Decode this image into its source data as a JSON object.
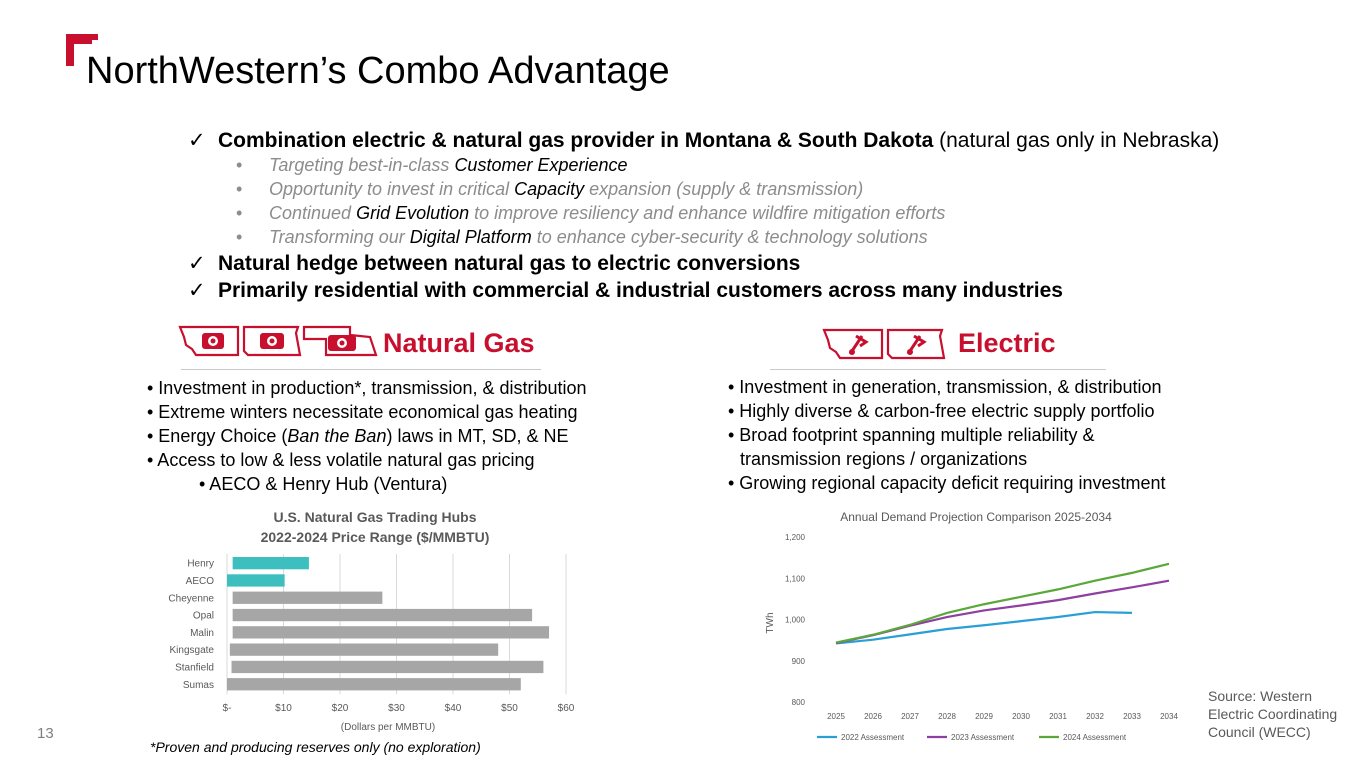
{
  "page": {
    "title": "NorthWestern’s Combo Advantage",
    "page_number": "13",
    "footnote": "*Proven and producing reserves only (no exploration)",
    "source": [
      "Source: Western",
      "Electric Coordinating",
      "Council (WECC)"
    ]
  },
  "colors": {
    "brand_red": "#c8102e",
    "teal": "#3dbfc0",
    "gray_bar": "#a6a6a6",
    "line_blue": "#2a9fd6",
    "line_purple": "#8e3fa0",
    "line_green": "#5aa83a"
  },
  "checklist": [
    {
      "bold": "Combination electric & natural gas provider in Montana & South Dakota",
      "normal": " (natural gas only in Nebraska)"
    },
    {
      "bold": "Natural hedge between natural gas to electric conversions",
      "normal": ""
    },
    {
      "bold": "Primarily residential with commercial & industrial customers across many industries",
      "normal": ""
    }
  ],
  "sub_bullets": [
    {
      "pre": "Targeting best-in-class ",
      "hl": "Customer Experience",
      "post": ""
    },
    {
      "pre": "Opportunity to invest in critical ",
      "hl": "Capacity",
      "post": " expansion (supply & transmission)"
    },
    {
      "pre": "Continued ",
      "hl": "Grid Evolution",
      "post": " to improve resiliency and enhance wildfire mitigation efforts"
    },
    {
      "pre": "Transforming our ",
      "hl": "Digital Platform",
      "post": " to enhance cyber-security & technology solutions"
    }
  ],
  "natural_gas": {
    "heading": "Natural Gas",
    "bullets": [
      "• Investment in production*, transmission, & distribution",
      "• Extreme winters necessitate economical gas heating"
    ],
    "energy_choice": {
      "pre": "• Energy Choice (",
      "italic": "Ban the Ban",
      "post": ") laws in MT, SD, & NE"
    },
    "bullets2": [
      "• Access to low & less volatile natural gas pricing"
    ],
    "sub_bullet": "• AECO & Henry Hub (Ventura)"
  },
  "electric": {
    "heading": "Electric",
    "bullets": [
      "• Investment in generation, transmission, & distribution",
      "• Highly diverse & carbon-free electric supply portfolio",
      "• Broad footprint spanning multiple reliability &",
      "transmission regions / organizations",
      "• Growing regional capacity deficit requiring investment"
    ]
  },
  "chart_data": [
    {
      "type": "bar",
      "orientation": "horizontal",
      "title": "U.S. Natural Gas Trading Hubs",
      "subtitle": "2022-2024 Price Range ($/MMBTU)",
      "xlabel": "(Dollars per MMBTU)",
      "xlim": [
        0,
        60
      ],
      "tick_labels": [
        "$-",
        "$10",
        "$20",
        "$30",
        "$40",
        "$50",
        "$60"
      ],
      "categories": [
        "Henry",
        "AECO",
        "Cheyenne",
        "Opal",
        "Malin",
        "Kingsgate",
        "Stanfield",
        "Sumas"
      ],
      "ranges": [
        [
          1,
          14.5
        ],
        [
          0,
          10.2
        ],
        [
          1,
          27.5
        ],
        [
          1,
          54
        ],
        [
          1,
          57
        ],
        [
          0.5,
          48
        ],
        [
          0.8,
          56
        ],
        [
          0,
          52
        ]
      ],
      "colors": [
        "#3dbfc0",
        "#3dbfc0",
        "#a6a6a6",
        "#a6a6a6",
        "#a6a6a6",
        "#a6a6a6",
        "#a6a6a6",
        "#a6a6a6"
      ],
      "grid": true
    },
    {
      "type": "line",
      "title": "Annual Demand Projection Comparison 2025-2034",
      "ylabel": "TWh",
      "ylim": [
        800,
        1200
      ],
      "yticks": [
        "800",
        "900",
        "1,000",
        "1,100",
        "1,200"
      ],
      "x": [
        "2025",
        "2026",
        "2027",
        "2028",
        "2029",
        "2030",
        "2031",
        "2032",
        "2033",
        "2034"
      ],
      "series": [
        {
          "name": "2022 Assessment",
          "color": "#2a9fd6",
          "values": [
            942,
            951,
            964,
            977,
            986,
            996,
            1006,
            1018,
            1016,
            null
          ]
        },
        {
          "name": "2023 Assessment",
          "color": "#8e3fa0",
          "values": [
            943,
            962,
            985,
            1006,
            1022,
            1034,
            1047,
            1063,
            1078,
            1094
          ]
        },
        {
          "name": "2024 Assessment",
          "color": "#5aa83a",
          "values": [
            944,
            963,
            987,
            1016,
            1037,
            1055,
            1073,
            1094,
            1113,
            1135
          ]
        }
      ],
      "legend": "bottom",
      "grid": false
    }
  ]
}
